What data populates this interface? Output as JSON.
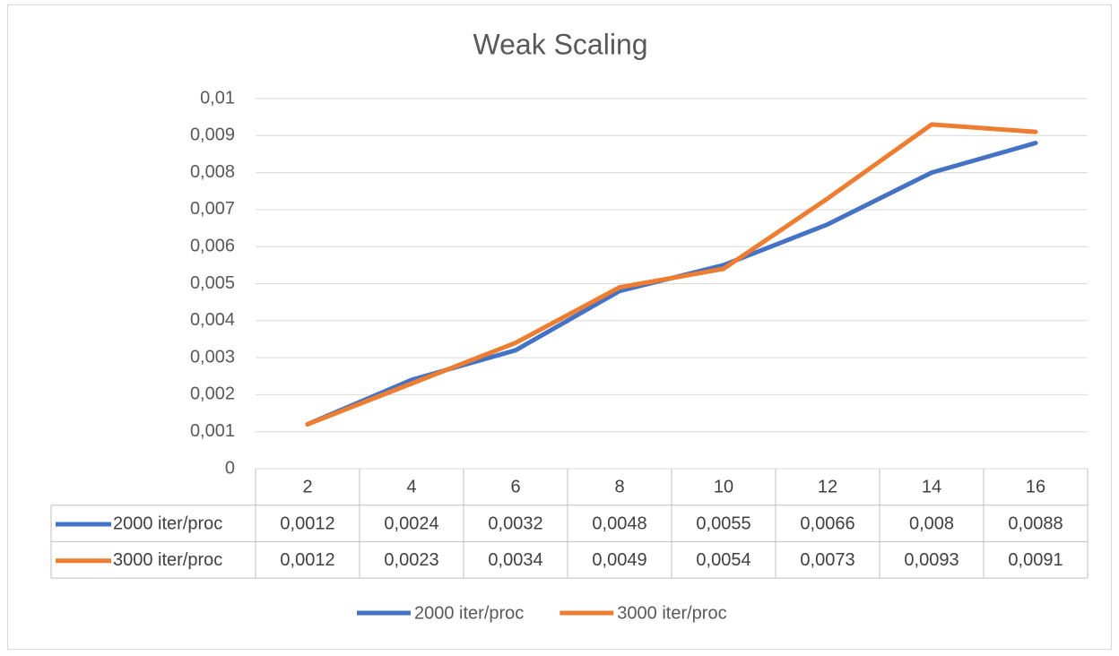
{
  "chart_data": {
    "type": "line",
    "title": "Weak Scaling",
    "categories": [
      "2",
      "4",
      "6",
      "8",
      "10",
      "12",
      "14",
      "16"
    ],
    "series": [
      {
        "name": "2000 iter/proc",
        "color": "#4472c4",
        "values": [
          0.0012,
          0.0024,
          0.0032,
          0.0048,
          0.0055,
          0.0066,
          0.008,
          0.0088
        ],
        "value_labels": [
          "0,0012",
          "0,0024",
          "0,0032",
          "0,0048",
          "0,0055",
          "0,0066",
          "0,008",
          "0,0088"
        ]
      },
      {
        "name": "3000 iter/proc",
        "color": "#ed7d31",
        "values": [
          0.0012,
          0.0023,
          0.0034,
          0.0049,
          0.0054,
          0.0073,
          0.0093,
          0.0091
        ],
        "value_labels": [
          "0,0012",
          "0,0023",
          "0,0034",
          "0,0049",
          "0,0054",
          "0,0073",
          "0,0093",
          "0,0091"
        ]
      }
    ],
    "ylim": [
      0,
      0.01
    ],
    "yticks": [
      0,
      {
        "value": 0.001,
        "label": "0,001"
      },
      {
        "value": 0.002,
        "label": "0,002"
      },
      {
        "value": 0.003,
        "label": "0,003"
      },
      {
        "value": 0.004,
        "label": "0,004"
      },
      {
        "value": 0.005,
        "label": "0,005"
      },
      {
        "value": 0.006,
        "label": "0,006"
      },
      {
        "value": 0.007,
        "label": "0,007"
      },
      {
        "value": 0.008,
        "label": "0,008"
      },
      {
        "value": 0.009,
        "label": "0,009"
      },
      {
        "value": 0.01,
        "label": "0,01"
      }
    ],
    "grid": true,
    "data_table": true,
    "legend": "bottom"
  }
}
